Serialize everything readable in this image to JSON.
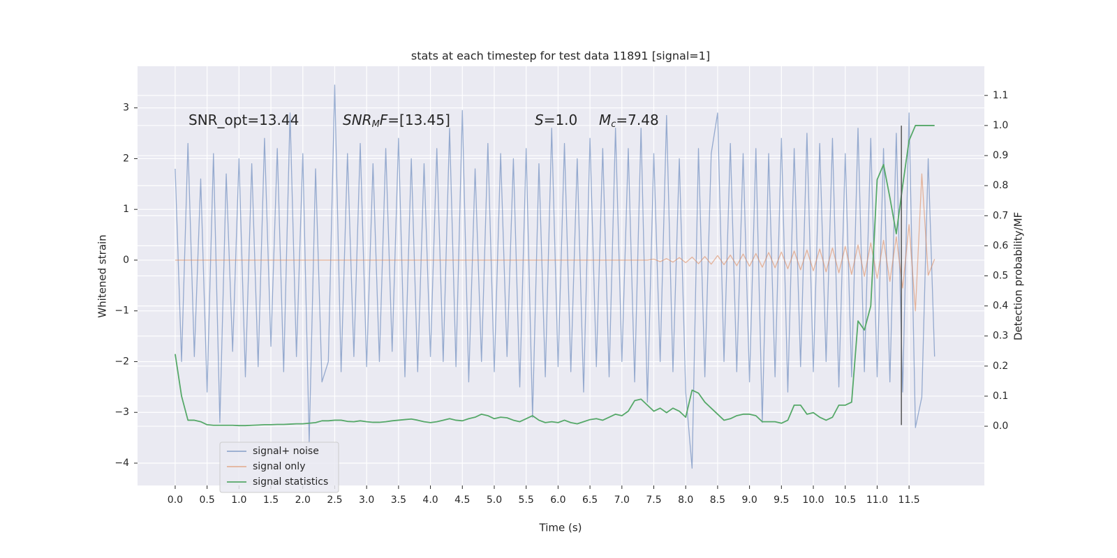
{
  "chart_data": {
    "type": "line",
    "title": "stats at each timestep for test data 11891 [signal=1]",
    "xlabel": "Time (s)",
    "ylabel": "Whitened strain",
    "y2label": "Detection probability/MF",
    "xlim": [
      -0.59,
      12.68
    ],
    "ylim": [
      -4.44,
      3.82
    ],
    "y2lim": [
      -0.197,
      1.197
    ],
    "xticks": [
      {
        "value": 0,
        "label": "0.0"
      },
      {
        "value": 0.5,
        "label": "0.5"
      },
      {
        "value": 1,
        "label": "1.0"
      },
      {
        "value": 1.5,
        "label": "1.5"
      },
      {
        "value": 2,
        "label": "2.0"
      },
      {
        "value": 2.5,
        "label": "2.5"
      },
      {
        "value": 3,
        "label": "3.0"
      },
      {
        "value": 3.5,
        "label": "3.5"
      },
      {
        "value": 4,
        "label": "4.0"
      },
      {
        "value": 4.5,
        "label": "4.5"
      },
      {
        "value": 5,
        "label": "5.0"
      },
      {
        "value": 5.5,
        "label": "5.5"
      },
      {
        "value": 6,
        "label": "6.0"
      },
      {
        "value": 6.5,
        "label": "6.5"
      },
      {
        "value": 7,
        "label": "7.0"
      },
      {
        "value": 7.5,
        "label": "7.5"
      },
      {
        "value": 8,
        "label": "8.0"
      },
      {
        "value": 8.5,
        "label": "8.5"
      },
      {
        "value": 9,
        "label": "9.0"
      },
      {
        "value": 9.5,
        "label": "9.5"
      },
      {
        "value": 10,
        "label": "10.0"
      },
      {
        "value": 10.5,
        "label": "10.5"
      },
      {
        "value": 11,
        "label": "11.0"
      },
      {
        "value": 11.5,
        "label": "11.5"
      }
    ],
    "yticks": [
      {
        "value": -4,
        "label": "−4"
      },
      {
        "value": -3,
        "label": "−3"
      },
      {
        "value": -2,
        "label": "−2"
      },
      {
        "value": -1,
        "label": "−1"
      },
      0,
      1,
      2,
      3
    ],
    "y2ticks": [
      {
        "value": 0,
        "label": "0.0"
      },
      {
        "value": 0.1,
        "label": "0.1"
      },
      {
        "value": 0.2,
        "label": "0.2"
      },
      {
        "value": 0.3,
        "label": "0.3"
      },
      {
        "value": 0.4,
        "label": "0.4"
      },
      {
        "value": 0.5,
        "label": "0.5"
      },
      {
        "value": 0.6,
        "label": "0.6"
      },
      {
        "value": 0.7,
        "label": "0.7"
      },
      {
        "value": 0.8,
        "label": "0.8"
      },
      {
        "value": 0.9,
        "label": "0.9"
      },
      {
        "value": 1,
        "label": "1.0"
      },
      {
        "value": 1.1,
        "label": "1.1"
      }
    ],
    "grid": true,
    "legend_loc": "lower left",
    "x": [
      0,
      0.1,
      0.2,
      0.3,
      0.4,
      0.5,
      0.6,
      0.7,
      0.8,
      0.9,
      1,
      1.1,
      1.2,
      1.3,
      1.4,
      1.5,
      1.6,
      1.7,
      1.8,
      1.9,
      2,
      2.1,
      2.2,
      2.3,
      2.4,
      2.5,
      2.6,
      2.7,
      2.8,
      2.9,
      3,
      3.1,
      3.2,
      3.3,
      3.4,
      3.5,
      3.6,
      3.7,
      3.8,
      3.9,
      4,
      4.1,
      4.2,
      4.3,
      4.4,
      4.5,
      4.6,
      4.7,
      4.8,
      4.9,
      5,
      5.1,
      5.2,
      5.3,
      5.4,
      5.5,
      5.6,
      5.7,
      5.8,
      5.9,
      6,
      6.1,
      6.2,
      6.3,
      6.4,
      6.5,
      6.6,
      6.7,
      6.8,
      6.9,
      7,
      7.1,
      7.2,
      7.3,
      7.4,
      7.5,
      7.6,
      7.7,
      7.8,
      7.9,
      8,
      8.1,
      8.2,
      8.3,
      8.4,
      8.5,
      8.6,
      8.7,
      8.8,
      8.9,
      9,
      9.1,
      9.2,
      9.3,
      9.4,
      9.5,
      9.6,
      9.7,
      9.8,
      9.9,
      10,
      10.1,
      10.2,
      10.3,
      10.4,
      10.5,
      10.6,
      10.7,
      10.8,
      10.9,
      11,
      11.1,
      11.2,
      11.3,
      11.4,
      11.5,
      11.6,
      11.7,
      11.8,
      11.9
    ],
    "series": [
      {
        "name": "signal+ noise",
        "color": "#4c72b0",
        "alpha": 0.55,
        "values": [
          1.8,
          -2.0,
          2.3,
          -1.9,
          1.6,
          -2.6,
          2.1,
          -3.2,
          1.7,
          -1.8,
          2.0,
          -2.3,
          1.9,
          -2.1,
          2.4,
          -1.7,
          2.2,
          -2.2,
          2.9,
          -1.9,
          2.1,
          -3.6,
          1.8,
          -2.4,
          -2.0,
          3.45,
          -2.2,
          2.1,
          -1.9,
          2.3,
          -2.1,
          1.9,
          -2.0,
          2.2,
          -1.8,
          2.4,
          -2.3,
          2.0,
          -2.2,
          1.9,
          -1.9,
          2.2,
          -2.0,
          2.6,
          -2.1,
          2.95,
          -2.4,
          1.8,
          -2.0,
          2.3,
          -2.2,
          2.1,
          -1.9,
          2.0,
          -2.5,
          2.2,
          -3.1,
          1.9,
          -2.3,
          2.6,
          -2.1,
          2.3,
          -2.2,
          2.0,
          -2.6,
          2.4,
          -2.1,
          2.2,
          -2.3,
          2.6,
          -2.0,
          2.2,
          -2.4,
          2.6,
          -2.8,
          2.1,
          -2.0,
          2.85,
          -2.2,
          2.0,
          -2.6,
          -4.1,
          2.2,
          -2.3,
          2.1,
          2.9,
          -2.0,
          2.3,
          -2.2,
          2.1,
          -2.4,
          2.2,
          -3.2,
          2.1,
          -2.3,
          2.4,
          -2.6,
          2.2,
          -2.1,
          2.5,
          -2.2,
          2.3,
          -2.0,
          2.4,
          -2.5,
          2.1,
          -2.3,
          2.6,
          -2.2,
          2.4,
          -2.3,
          2.2,
          -2.4,
          2.5,
          -2.6,
          2.9,
          -3.3,
          -2.7,
          2.0,
          -1.9
        ]
      },
      {
        "name": "signal only",
        "color": "#dd8452",
        "alpha": 0.55,
        "values": [
          0,
          0,
          0,
          0,
          0,
          0,
          0,
          0,
          0,
          0,
          0,
          0,
          0,
          0,
          0,
          0,
          0,
          0,
          0,
          0,
          0,
          0,
          0,
          0,
          0,
          0,
          0,
          0,
          0,
          0,
          0,
          0,
          0,
          0,
          0,
          0,
          0,
          0,
          0,
          0,
          0,
          0,
          0,
          0,
          0,
          0,
          0,
          0,
          0,
          0,
          0,
          0,
          0,
          0,
          0,
          0,
          0,
          0,
          0,
          0,
          0,
          0,
          0,
          0,
          0,
          0,
          0,
          0,
          0,
          0,
          0,
          0,
          0,
          0,
          0,
          0.02,
          -0.03,
          0.03,
          -0.04,
          0.05,
          -0.05,
          0.06,
          -0.07,
          0.07,
          -0.08,
          0.09,
          -0.09,
          0.1,
          -0.11,
          0.12,
          -0.12,
          0.13,
          -0.14,
          0.15,
          -0.15,
          0.16,
          -0.17,
          0.18,
          -0.19,
          0.2,
          -0.21,
          0.22,
          -0.23,
          0.24,
          -0.25,
          0.27,
          -0.28,
          0.3,
          -0.32,
          0.34,
          -0.36,
          0.39,
          -0.42,
          0.46,
          -0.55,
          0.7,
          -1.0,
          1.7,
          -0.3,
          0.02
        ]
      },
      {
        "name": "signal statistics",
        "color": "#55a868",
        "alpha": 1,
        "axis": "y2",
        "values": [
          0.24,
          0.1,
          0.02,
          0.02,
          0.015,
          0.005,
          0.003,
          0.003,
          0.003,
          0.003,
          0.002,
          0.002,
          0.003,
          0.004,
          0.005,
          0.005,
          0.006,
          0.006,
          0.007,
          0.008,
          0.008,
          0.01,
          0.012,
          0.018,
          0.018,
          0.02,
          0.02,
          0.016,
          0.015,
          0.018,
          0.015,
          0.013,
          0.013,
          0.015,
          0.018,
          0.02,
          0.022,
          0.024,
          0.02,
          0.015,
          0.012,
          0.015,
          0.02,
          0.025,
          0.02,
          0.018,
          0.025,
          0.03,
          0.04,
          0.035,
          0.025,
          0.03,
          0.028,
          0.02,
          0.015,
          0.025,
          0.035,
          0.02,
          0.012,
          0.015,
          0.012,
          0.02,
          0.012,
          0.008,
          0.015,
          0.022,
          0.025,
          0.02,
          0.03,
          0.04,
          0.035,
          0.05,
          0.085,
          0.09,
          0.07,
          0.05,
          0.06,
          0.045,
          0.06,
          0.05,
          0.03,
          0.12,
          0.11,
          0.08,
          0.06,
          0.04,
          0.02,
          0.025,
          0.035,
          0.04,
          0.04,
          0.035,
          0.015,
          0.015,
          0.015,
          0.01,
          0.02,
          0.07,
          0.07,
          0.04,
          0.045,
          0.03,
          0.02,
          0.03,
          0.07,
          0.07,
          0.08,
          0.35,
          0.32,
          0.4,
          0.82,
          0.87,
          0.76,
          0.64,
          0.8,
          0.95,
          1.0,
          1.0,
          1.0,
          1.0
        ]
      }
    ],
    "vline": {
      "x": 11.38,
      "ymin": -3.25,
      "ymax": 2.65,
      "color": "#555555"
    },
    "annotations": [
      {
        "parts": [
          {
            "text": "SNR_opt=13.44",
            "italic": false,
            "sub": false
          }
        ]
      },
      {
        "parts": [
          {
            "text": "SNR",
            "italic": true,
            "sub": false
          },
          {
            "text": "M",
            "italic": true,
            "sub": true
          },
          {
            "text": "F",
            "italic": true,
            "sub": false
          },
          {
            "text": "=[13.45]",
            "italic": false,
            "sub": false
          }
        ]
      },
      {
        "parts": [
          {
            "text": "S",
            "italic": true,
            "sub": false
          },
          {
            "text": "=1.0",
            "italic": false,
            "sub": false
          }
        ]
      },
      {
        "parts": [
          {
            "text": "M",
            "italic": true,
            "sub": false
          },
          {
            "text": "c",
            "italic": true,
            "sub": true
          },
          {
            "text": "=7.48",
            "italic": false,
            "sub": false
          }
        ]
      }
    ]
  }
}
